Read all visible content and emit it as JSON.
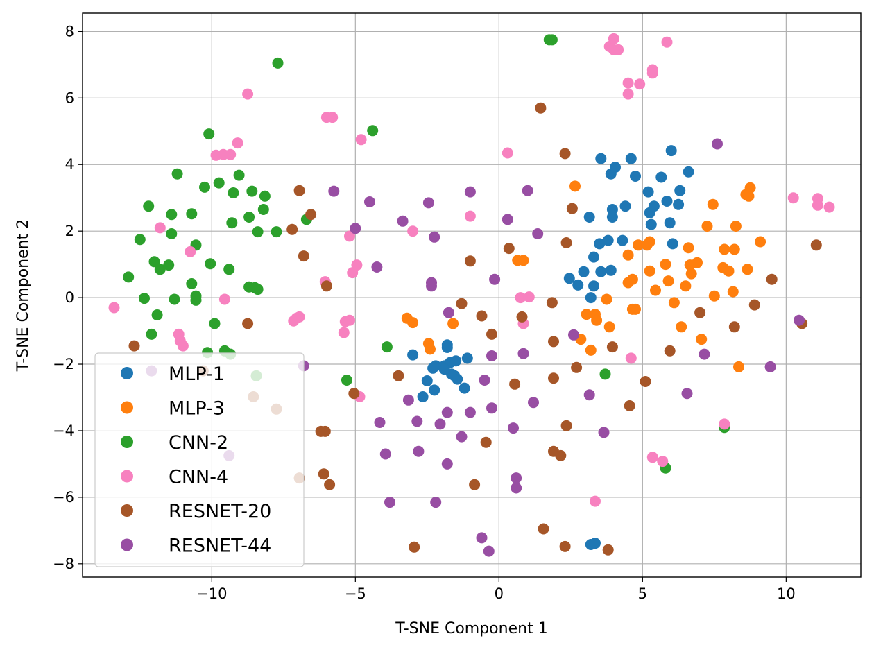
{
  "chart_data": {
    "type": "scatter",
    "title": "",
    "xlabel": "T-SNE Component 1",
    "ylabel": "T-SNE Component 2",
    "xlim": [
      -14.5,
      12.6
    ],
    "ylim": [
      -8.4,
      8.55
    ],
    "xticks": [
      -10,
      -5,
      0,
      5,
      10
    ],
    "xtick_labels": [
      "−10",
      "−5",
      "0",
      "5",
      "10"
    ],
    "yticks": [
      -8,
      -6,
      -4,
      -2,
      0,
      2,
      4,
      6,
      8
    ],
    "ytick_labels": [
      "−8",
      "−6",
      "−4",
      "−2",
      "0",
      "2",
      "4",
      "6",
      "8"
    ],
    "grid": true,
    "legend_position": "lower-left",
    "series": [
      {
        "name": "MLP-1",
        "color": "#1f77b4",
        "points": [
          [
            -3,
            -1.72
          ],
          [
            -2.2,
            -2.05
          ],
          [
            -2.3,
            -2.12
          ],
          [
            -1.9,
            -2.05
          ],
          [
            -1.7,
            -1.95
          ],
          [
            -1.5,
            -1.9
          ],
          [
            -1.8,
            -1.5
          ],
          [
            -1.8,
            -1.42
          ],
          [
            -1.1,
            -1.82
          ],
          [
            -2.5,
            -2.5
          ],
          [
            -2.25,
            -2.78
          ],
          [
            -2.65,
            -2.98
          ],
          [
            -1.2,
            -2.72
          ],
          [
            -1.65,
            -2.3
          ],
          [
            -1.45,
            -2.45
          ],
          [
            -1.9,
            -2.15
          ],
          [
            -1.55,
            -2.35
          ],
          [
            3.2,
            -7.42
          ],
          [
            3.35,
            -7.38
          ],
          [
            2.45,
            0.58
          ],
          [
            2.75,
            0.38
          ],
          [
            2.95,
            0.78
          ],
          [
            3.2,
            0.0
          ],
          [
            3.3,
            0.35
          ],
          [
            3.3,
            1.22
          ],
          [
            3.5,
            1.62
          ],
          [
            3.55,
            0.78
          ],
          [
            3.8,
            1.72
          ],
          [
            3.9,
            0.82
          ],
          [
            3.15,
            2.42
          ],
          [
            3.55,
            4.18
          ],
          [
            3.9,
            3.72
          ],
          [
            4.05,
            3.92
          ],
          [
            3.95,
            2.65
          ],
          [
            3.95,
            2.42
          ],
          [
            4.4,
            2.75
          ],
          [
            4.3,
            1.72
          ],
          [
            4.6,
            4.18
          ],
          [
            4.75,
            3.65
          ],
          [
            5.2,
            3.18
          ],
          [
            5.25,
            2.55
          ],
          [
            5.4,
            2.75
          ],
          [
            5.3,
            2.2
          ],
          [
            5.65,
            3.62
          ],
          [
            5.85,
            2.9
          ],
          [
            5.95,
            2.25
          ],
          [
            6.05,
            1.62
          ],
          [
            6.0,
            4.42
          ],
          [
            6.25,
            2.8
          ],
          [
            6.3,
            3.22
          ],
          [
            6.6,
            3.78
          ]
        ]
      },
      {
        "name": "MLP-3",
        "color": "#ff7f0e",
        "points": [
          [
            -3.2,
            -0.62
          ],
          [
            -3.0,
            -0.75
          ],
          [
            -2.45,
            -1.38
          ],
          [
            -2.4,
            -1.55
          ],
          [
            -1.6,
            -0.78
          ],
          [
            0.65,
            1.12
          ],
          [
            0.85,
            1.12
          ],
          [
            2.65,
            3.35
          ],
          [
            2.85,
            -1.25
          ],
          [
            3.05,
            -0.5
          ],
          [
            3.35,
            -0.5
          ],
          [
            3.4,
            -0.68
          ],
          [
            3.2,
            -1.58
          ],
          [
            3.75,
            -0.05
          ],
          [
            3.85,
            -0.88
          ],
          [
            4.5,
            1.28
          ],
          [
            4.5,
            0.45
          ],
          [
            4.65,
            0.55
          ],
          [
            4.65,
            -0.35
          ],
          [
            4.75,
            -0.35
          ],
          [
            4.85,
            1.58
          ],
          [
            5.15,
            1.58
          ],
          [
            5.25,
            1.68
          ],
          [
            5.25,
            0.8
          ],
          [
            5.45,
            0.22
          ],
          [
            5.8,
            1.0
          ],
          [
            5.9,
            0.5
          ],
          [
            6.1,
            -0.15
          ],
          [
            6.35,
            -0.88
          ],
          [
            6.5,
            0.35
          ],
          [
            6.6,
            1.5
          ],
          [
            6.7,
            0.72
          ],
          [
            6.65,
            0.98
          ],
          [
            6.9,
            1.05
          ],
          [
            7.05,
            -1.25
          ],
          [
            7.25,
            2.15
          ],
          [
            7.45,
            2.8
          ],
          [
            7.5,
            0.05
          ],
          [
            7.8,
            0.9
          ],
          [
            7.85,
            1.45
          ],
          [
            8.0,
            0.8
          ],
          [
            8.15,
            0.18
          ],
          [
            8.2,
            1.45
          ],
          [
            8.25,
            2.15
          ],
          [
            8.35,
            -2.08
          ],
          [
            8.6,
            3.1
          ],
          [
            8.65,
            0.85
          ],
          [
            8.7,
            3.05
          ],
          [
            8.75,
            3.3
          ],
          [
            9.1,
            1.68
          ]
        ]
      },
      {
        "name": "CNN-2",
        "color": "#2ca02c",
        "points": [
          [
            -12.9,
            0.62
          ],
          [
            -12.5,
            1.75
          ],
          [
            -12.35,
            -0.02
          ],
          [
            -12.2,
            2.75
          ],
          [
            -12.1,
            -1.1
          ],
          [
            -12.0,
            1.08
          ],
          [
            -11.9,
            -0.52
          ],
          [
            -11.8,
            0.85
          ],
          [
            -11.5,
            0.98
          ],
          [
            -11.4,
            1.92
          ],
          [
            -11.4,
            2.5
          ],
          [
            -11.3,
            -0.05
          ],
          [
            -11.2,
            3.72
          ],
          [
            -10.7,
            2.52
          ],
          [
            -10.7,
            0.42
          ],
          [
            -10.55,
            1.58
          ],
          [
            -10.55,
            0.05
          ],
          [
            -10.55,
            -0.08
          ],
          [
            -10.25,
            3.32
          ],
          [
            -10.1,
            4.92
          ],
          [
            -10.05,
            1.02
          ],
          [
            -10.15,
            -1.65
          ],
          [
            -9.9,
            -0.78
          ],
          [
            -9.75,
            3.45
          ],
          [
            -9.55,
            -1.6
          ],
          [
            -9.35,
            -1.7
          ],
          [
            -9.4,
            0.85
          ],
          [
            -9.3,
            2.25
          ],
          [
            -9.25,
            3.15
          ],
          [
            -9.05,
            3.68
          ],
          [
            -8.7,
            0.32
          ],
          [
            -8.7,
            2.42
          ],
          [
            -8.6,
            3.2
          ],
          [
            -8.5,
            0.3
          ],
          [
            -8.4,
            1.98
          ],
          [
            -8.4,
            0.25
          ],
          [
            -8.2,
            2.65
          ],
          [
            -8.15,
            3.05
          ],
          [
            -7.75,
            1.98
          ],
          [
            -7.7,
            7.05
          ],
          [
            -6.7,
            2.35
          ],
          [
            -5.3,
            -2.48
          ],
          [
            -4.4,
            5.02
          ],
          [
            -3.9,
            -1.48
          ],
          [
            -8.45,
            -2.35
          ],
          [
            1.75,
            7.75
          ],
          [
            1.85,
            7.75
          ],
          [
            3.7,
            -2.3
          ],
          [
            7.85,
            -3.9
          ],
          [
            5.8,
            -5.12
          ]
        ]
      },
      {
        "name": "CNN-4",
        "color": "#f781bf",
        "points": [
          [
            -13.4,
            -0.3
          ],
          [
            -11.8,
            2.1
          ],
          [
            -11.1,
            -1.3
          ],
          [
            -11.0,
            -1.45
          ],
          [
            -11.15,
            -1.1
          ],
          [
            -10.75,
            1.38
          ],
          [
            -9.85,
            4.28
          ],
          [
            -9.6,
            4.3
          ],
          [
            -9.55,
            -0.05
          ],
          [
            -9.35,
            4.3
          ],
          [
            -9.1,
            4.65
          ],
          [
            -8.75,
            6.12
          ],
          [
            -7.15,
            -0.7
          ],
          [
            -7.05,
            -0.62
          ],
          [
            -6.95,
            -0.58
          ],
          [
            -6.05,
            0.48
          ],
          [
            -6.0,
            5.42
          ],
          [
            -5.8,
            5.42
          ],
          [
            -5.4,
            -1.05
          ],
          [
            -5.35,
            -0.72
          ],
          [
            -5.2,
            -0.68
          ],
          [
            -5.2,
            1.85
          ],
          [
            -5.1,
            0.75
          ],
          [
            -4.95,
            0.98
          ],
          [
            -4.8,
            4.75
          ],
          [
            -4.85,
            -2.98
          ],
          [
            -3.0,
            2.0
          ],
          [
            -1.0,
            2.45
          ],
          [
            0.3,
            4.35
          ],
          [
            0.75,
            0.0
          ],
          [
            0.85,
            -0.78
          ],
          [
            1.05,
            0.02
          ],
          [
            3.35,
            -6.12
          ],
          [
            3.85,
            7.55
          ],
          [
            4.0,
            7.78
          ],
          [
            4.0,
            7.45
          ],
          [
            4.15,
            7.45
          ],
          [
            4.5,
            6.45
          ],
          [
            4.5,
            6.12
          ],
          [
            4.6,
            -1.82
          ],
          [
            4.9,
            6.42
          ],
          [
            5.35,
            6.85
          ],
          [
            5.35,
            6.75
          ],
          [
            5.35,
            -4.8
          ],
          [
            5.7,
            -4.92
          ],
          [
            5.85,
            7.68
          ],
          [
            7.85,
            -3.8
          ],
          [
            10.25,
            3.0
          ],
          [
            11.1,
            2.98
          ],
          [
            11.1,
            2.78
          ],
          [
            11.5,
            2.72
          ]
        ]
      },
      {
        "name": "RESNET-20",
        "color": "#a65628",
        "points": [
          [
            -12.7,
            -1.45
          ],
          [
            -10.3,
            -2.2
          ],
          [
            -8.75,
            -0.78
          ],
          [
            -8.55,
            -2.98
          ],
          [
            -7.75,
            -3.35
          ],
          [
            -7.2,
            2.05
          ],
          [
            -6.95,
            3.22
          ],
          [
            -6.95,
            -5.42
          ],
          [
            -6.8,
            1.25
          ],
          [
            -6.55,
            2.5
          ],
          [
            -6.2,
            -4.02
          ],
          [
            -6.05,
            -4.02
          ],
          [
            -6.1,
            -5.3
          ],
          [
            -6.0,
            0.35
          ],
          [
            -5.9,
            -5.62
          ],
          [
            -5.05,
            -2.88
          ],
          [
            -3.5,
            -2.35
          ],
          [
            -2.95,
            -7.5
          ],
          [
            -1.3,
            -0.18
          ],
          [
            -1.0,
            1.1
          ],
          [
            -0.85,
            -5.62
          ],
          [
            -0.6,
            -0.55
          ],
          [
            -0.45,
            -4.35
          ],
          [
            -0.25,
            -1.1
          ],
          [
            0.35,
            1.48
          ],
          [
            0.55,
            -2.6
          ],
          [
            0.8,
            -0.58
          ],
          [
            1.45,
            5.7
          ],
          [
            1.85,
            -0.15
          ],
          [
            1.9,
            -1.32
          ],
          [
            1.9,
            -2.42
          ],
          [
            1.9,
            -4.62
          ],
          [
            1.55,
            -6.95
          ],
          [
            2.15,
            -4.75
          ],
          [
            2.3,
            4.33
          ],
          [
            2.35,
            1.65
          ],
          [
            2.35,
            -3.85
          ],
          [
            2.3,
            -7.48
          ],
          [
            2.55,
            2.68
          ],
          [
            2.7,
            -2.1
          ],
          [
            3.8,
            -7.58
          ],
          [
            3.95,
            -1.48
          ],
          [
            4.55,
            -3.25
          ],
          [
            5.1,
            -2.52
          ],
          [
            5.95,
            -1.6
          ],
          [
            7.0,
            -0.45
          ],
          [
            8.2,
            -0.88
          ],
          [
            8.9,
            -0.22
          ],
          [
            9.5,
            0.55
          ],
          [
            11.05,
            1.58
          ],
          [
            10.55,
            -0.78
          ]
        ]
      },
      {
        "name": "RESNET-44",
        "color": "#984ea3",
        "points": [
          [
            -12.1,
            -2.2
          ],
          [
            -9.4,
            -4.75
          ],
          [
            -6.8,
            -2.05
          ],
          [
            -5.75,
            3.2
          ],
          [
            -5.0,
            2.08
          ],
          [
            -4.5,
            2.88
          ],
          [
            -4.25,
            0.92
          ],
          [
            -4.15,
            -3.75
          ],
          [
            -3.95,
            -4.7
          ],
          [
            -3.8,
            -6.15
          ],
          [
            -3.35,
            2.3
          ],
          [
            -3.15,
            -3.08
          ],
          [
            -2.85,
            -3.72
          ],
          [
            -2.8,
            -4.62
          ],
          [
            -2.45,
            2.85
          ],
          [
            -2.35,
            0.45
          ],
          [
            -2.35,
            0.35
          ],
          [
            -2.25,
            1.82
          ],
          [
            -2.2,
            -6.15
          ],
          [
            -2.05,
            -3.8
          ],
          [
            -1.8,
            -3.45
          ],
          [
            -1.8,
            -5.0
          ],
          [
            -1.75,
            -0.45
          ],
          [
            -1.3,
            -4.18
          ],
          [
            -1.0,
            -3.45
          ],
          [
            -1.0,
            3.18
          ],
          [
            -0.6,
            -7.22
          ],
          [
            -0.5,
            -2.48
          ],
          [
            -0.35,
            -7.62
          ],
          [
            -0.25,
            -1.75
          ],
          [
            -0.25,
            -3.32
          ],
          [
            -0.15,
            0.55
          ],
          [
            0.3,
            2.35
          ],
          [
            0.5,
            -3.92
          ],
          [
            0.6,
            -5.42
          ],
          [
            0.6,
            -5.72
          ],
          [
            0.85,
            -1.68
          ],
          [
            1.0,
            3.22
          ],
          [
            1.2,
            -3.15
          ],
          [
            1.35,
            1.92
          ],
          [
            2.6,
            -1.12
          ],
          [
            3.15,
            -2.92
          ],
          [
            3.65,
            -4.05
          ],
          [
            6.55,
            -2.88
          ],
          [
            7.15,
            -1.7
          ],
          [
            7.6,
            4.62
          ],
          [
            9.45,
            -2.08
          ],
          [
            10.45,
            -0.68
          ]
        ]
      }
    ]
  }
}
